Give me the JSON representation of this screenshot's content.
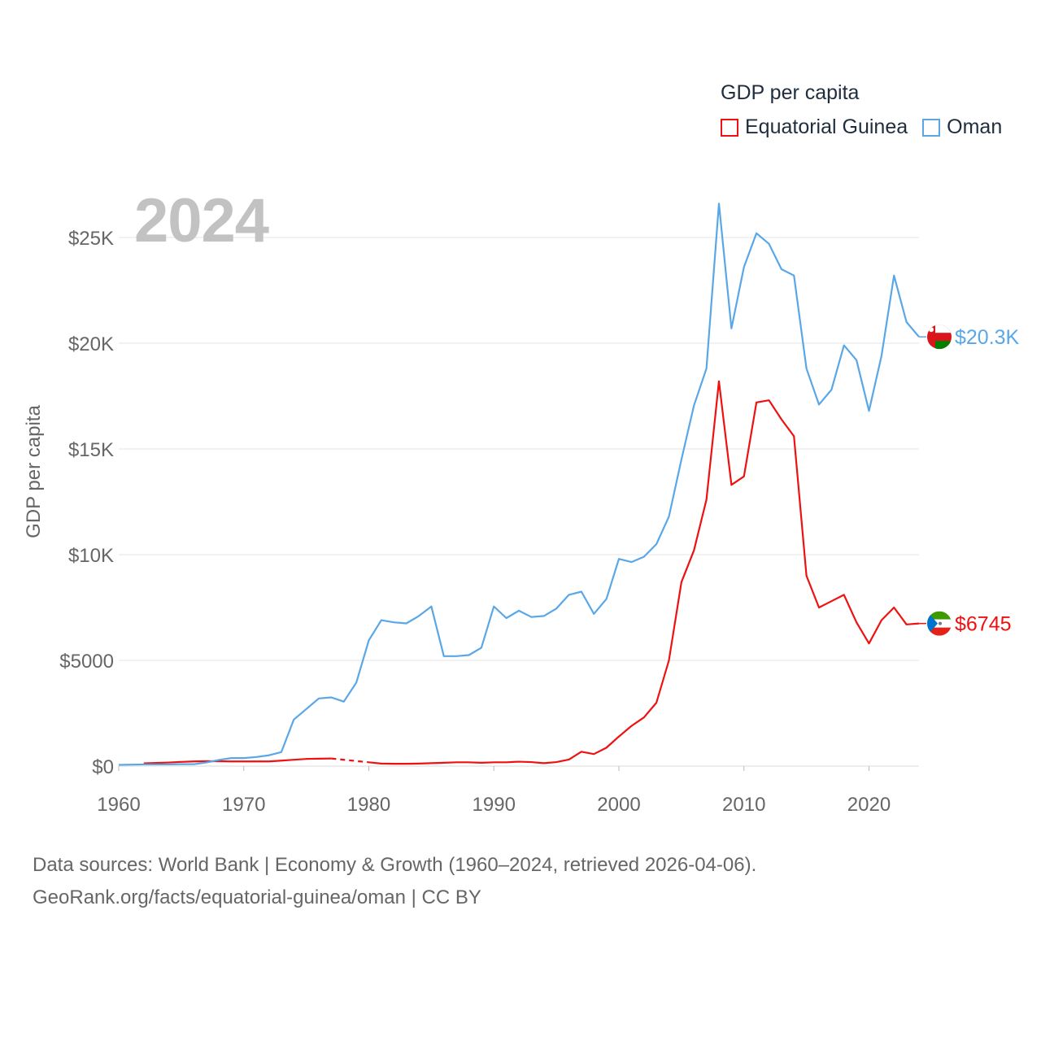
{
  "chart_data": {
    "type": "line",
    "title": "GDP per capita",
    "big_year_label": "2024",
    "ylabel": "GDP per capita",
    "xlabel": "",
    "xlim": [
      1960,
      2024
    ],
    "ylim": [
      0,
      27000
    ],
    "grid": true,
    "x_ticks": [
      1960,
      1970,
      1980,
      1990,
      2000,
      2010,
      2020
    ],
    "y_ticks": [
      {
        "value": 0,
        "label": "$0"
      },
      {
        "value": 5000,
        "label": "$5000"
      },
      {
        "value": 10000,
        "label": "$10K"
      },
      {
        "value": 15000,
        "label": "$15K"
      },
      {
        "value": 20000,
        "label": "$20K"
      },
      {
        "value": 25000,
        "label": "$25K"
      }
    ],
    "legend_placement": "top-right",
    "series": [
      {
        "name": "Equatorial Guinea",
        "color": "#ee1111",
        "end_label": "$6745",
        "flag": "equatorial-guinea-flag",
        "dashed_between": [
          1977,
          1980
        ],
        "x": [
          1962,
          1963,
          1964,
          1965,
          1966,
          1967,
          1968,
          1969,
          1970,
          1971,
          1972,
          1973,
          1974,
          1975,
          1976,
          1977,
          1980,
          1981,
          1982,
          1983,
          1984,
          1985,
          1986,
          1987,
          1988,
          1989,
          1990,
          1991,
          1992,
          1993,
          1994,
          1995,
          1996,
          1997,
          1998,
          1999,
          2000,
          2001,
          2002,
          2003,
          2004,
          2005,
          2006,
          2007,
          2008,
          2009,
          2010,
          2011,
          2012,
          2013,
          2014,
          2015,
          2016,
          2017,
          2018,
          2019,
          2020,
          2021,
          2022,
          2023,
          2024
        ],
        "values": [
          130,
          150,
          170,
          200,
          220,
          230,
          230,
          220,
          220,
          220,
          220,
          260,
          300,
          340,
          350,
          360,
          180,
          120,
          110,
          110,
          120,
          140,
          160,
          180,
          180,
          160,
          180,
          180,
          210,
          190,
          140,
          190,
          310,
          680,
          570,
          870,
          1400,
          1900,
          2300,
          3000,
          5000,
          8700,
          10200,
          12600,
          18200,
          13300,
          13700,
          17200,
          17300,
          16400,
          15600,
          9000,
          7500,
          7800,
          8100,
          6800,
          5800,
          6900,
          7500,
          6700,
          6745
        ]
      },
      {
        "name": "Oman",
        "color": "#5aa7e8",
        "end_label": "$20.3K",
        "flag": "oman-flag",
        "x": [
          1960,
          1961,
          1962,
          1963,
          1964,
          1965,
          1966,
          1967,
          1968,
          1969,
          1970,
          1971,
          1972,
          1973,
          1974,
          1975,
          1976,
          1977,
          1978,
          1979,
          1980,
          1981,
          1982,
          1983,
          1984,
          1985,
          1986,
          1987,
          1988,
          1989,
          1990,
          1991,
          1992,
          1993,
          1994,
          1995,
          1996,
          1997,
          1998,
          1999,
          2000,
          2001,
          2002,
          2003,
          2004,
          2005,
          2006,
          2007,
          2008,
          2009,
          2010,
          2011,
          2012,
          2013,
          2014,
          2015,
          2016,
          2017,
          2018,
          2019,
          2020,
          2021,
          2022,
          2023,
          2024
        ],
        "values": [
          60,
          70,
          80,
          80,
          80,
          90,
          90,
          170,
          290,
          380,
          380,
          430,
          510,
          660,
          2200,
          2700,
          3200,
          3250,
          3050,
          3950,
          5950,
          6900,
          6800,
          6750,
          7100,
          7550,
          5200,
          5200,
          5250,
          5600,
          7550,
          7000,
          7350,
          7050,
          7100,
          7450,
          8100,
          8250,
          7200,
          7900,
          9800,
          9650,
          9900,
          10500,
          11800,
          14500,
          17050,
          18800,
          26600,
          20700,
          23600,
          25200,
          24700,
          23500,
          23200,
          18800,
          17100,
          17800,
          19900,
          19200,
          16800,
          19400,
          23200,
          21000,
          20300
        ]
      }
    ]
  },
  "footer": {
    "line1": "Data sources: World Bank | Economy & Growth (1960–2024, retrieved 2026-04-06).",
    "line2": "GeoRank.org/facts/equatorial-guinea/oman | CC BY"
  }
}
